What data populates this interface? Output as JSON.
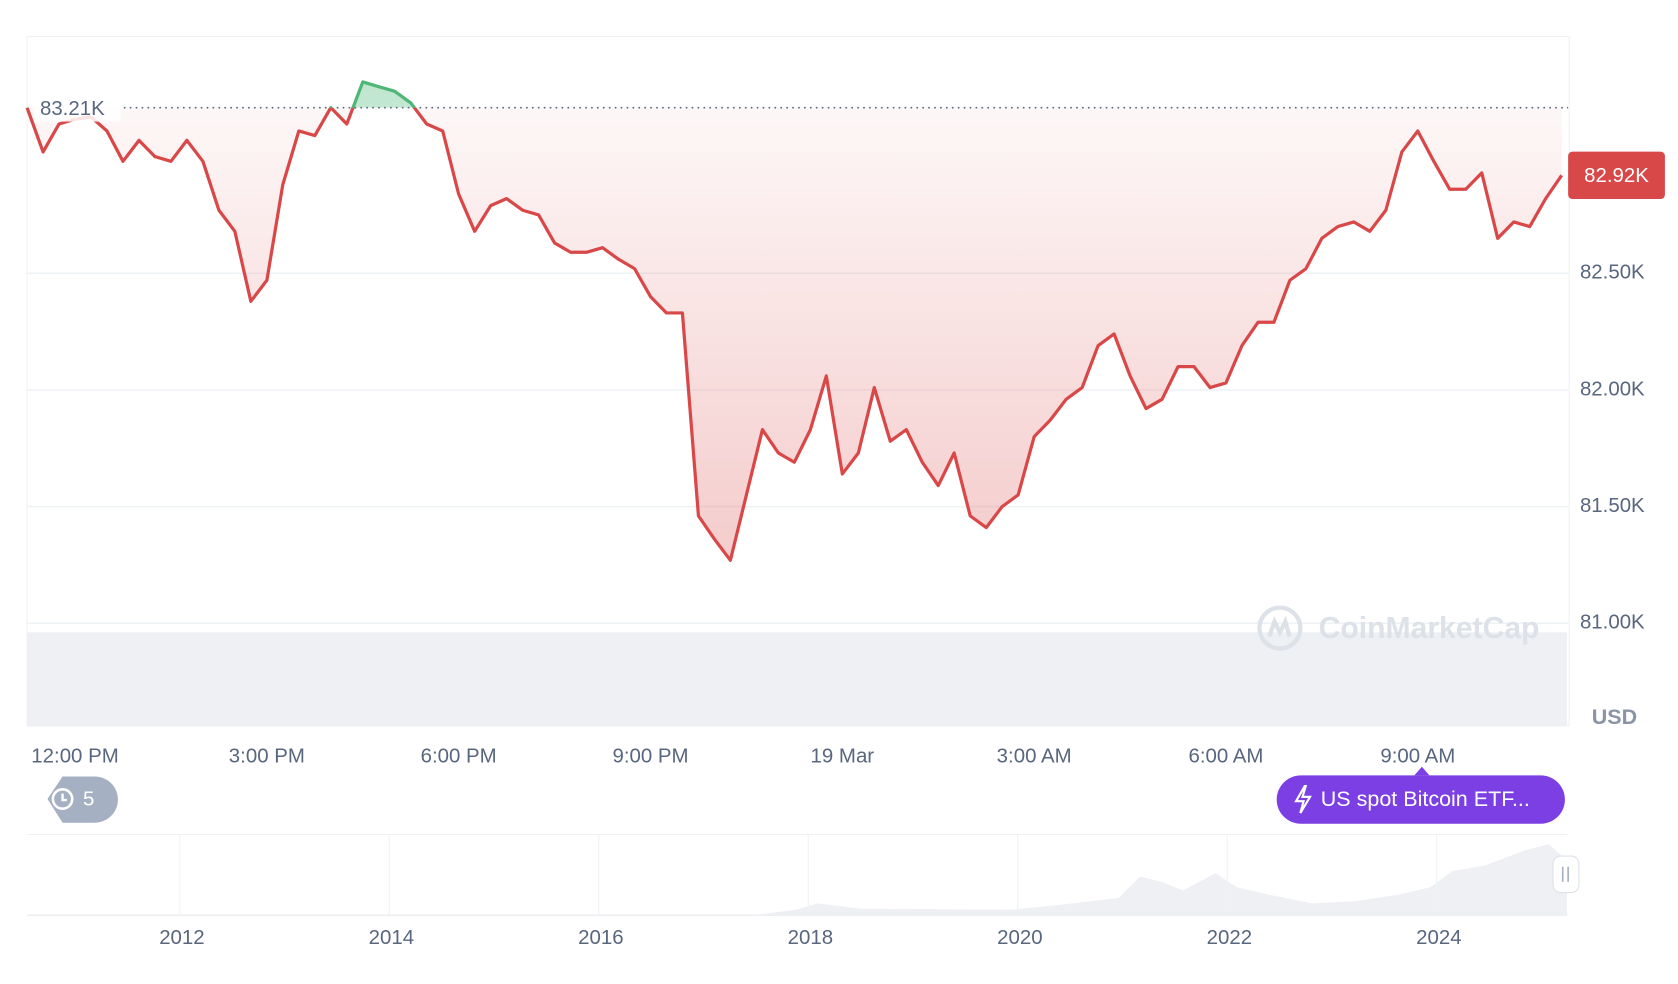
{
  "chart_data": {
    "type": "line",
    "categories": [
      null,
      null,
      null,
      "12:00 PM",
      null,
      null,
      null,
      null,
      null,
      null,
      null,
      null,
      null,
      null,
      null,
      "3:00 PM",
      null,
      null,
      null,
      null,
      null,
      null,
      null,
      null,
      null,
      null,
      null,
      "6:00 PM",
      null,
      null,
      null,
      null,
      null,
      null,
      null,
      null,
      null,
      null,
      null,
      "9:00 PM",
      null,
      null,
      null,
      null,
      null,
      null,
      null,
      null,
      null,
      null,
      null,
      "19 Mar",
      null,
      null,
      null,
      null,
      null,
      null,
      null,
      null,
      null,
      null,
      null,
      "3:00 AM",
      null,
      null,
      null,
      null,
      null,
      null,
      null,
      null,
      null,
      null,
      null,
      "6:00 AM",
      null,
      null,
      null,
      null,
      null,
      null,
      null,
      null,
      null,
      null,
      null,
      "9:00 AM",
      null,
      null,
      null,
      null,
      null,
      null,
      null,
      null,
      null
    ],
    "series": [
      {
        "color": "#d94848",
        "up_color": "#4cb777",
        "values": [
          83210,
          83020,
          83140,
          83160,
          83170,
          83110,
          82980,
          83070,
          83000,
          82980,
          83070,
          82980,
          82770,
          82680,
          82380,
          82470,
          82880,
          83110,
          83090,
          83210,
          83140,
          83320,
          83300,
          83280,
          83230,
          83140,
          83110,
          82840,
          82680,
          82790,
          82820,
          82770,
          82750,
          82630,
          82590,
          82590,
          82610,
          82560,
          82520,
          82400,
          82330,
          82330,
          81460,
          81360,
          81270,
          81550,
          81830,
          81730,
          81690,
          81830,
          82060,
          81640,
          81730,
          82010,
          81780,
          81830,
          81690,
          81590,
          81730,
          81460,
          81410,
          81500,
          81550,
          81800,
          81870,
          81960,
          82010,
          82190,
          82240,
          82060,
          81920,
          81960,
          82100,
          82100,
          82010,
          82030,
          82190,
          82290,
          82290,
          82470,
          82520,
          82650,
          82700,
          82720,
          82680,
          82770,
          83020,
          83110,
          82980,
          82860,
          82860,
          82930,
          82650,
          82720,
          82700,
          82820,
          82920
        ]
      }
    ],
    "ylim": [
      80560,
      83510
    ],
    "yticks": [
      {
        "value": 81000,
        "label": "81.00K"
      },
      {
        "value": 81500,
        "label": "81.50K"
      },
      {
        "value": 82000,
        "label": "82.00K"
      },
      {
        "value": 82500,
        "label": "82.50K"
      }
    ],
    "y_label": "USD",
    "reference": {
      "value": 83210,
      "label": "83.21K"
    },
    "current_price": {
      "value": 82920,
      "label": "82.92K"
    },
    "grid": true,
    "watermark": "CoinMarketCap",
    "history_badge": "5",
    "event_button": "US spot Bitcoin ETF...",
    "navigator_labels": [
      "2012",
      "2014",
      "2016",
      "2018",
      "2020",
      "2022",
      "2024"
    ]
  }
}
